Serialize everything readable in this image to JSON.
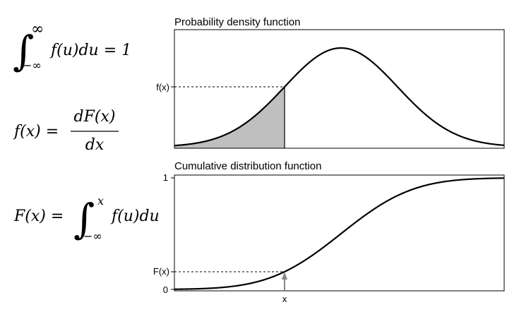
{
  "formulas": {
    "normalization": {
      "upper": "∞",
      "lower": "−∞",
      "integrand": "f(u)du = 1"
    },
    "derivative": {
      "lhs": "f(x) =",
      "numerator": "dF(x)",
      "denominator": "dx"
    },
    "cumulative": {
      "lhs": "F(x) =",
      "upper": "x",
      "lower": "−∞",
      "integrand": "f(u)du"
    }
  },
  "pdf_panel": {
    "title": "Probability density function",
    "y_label": "f(x)"
  },
  "cdf_panel": {
    "title": "Cumulative distribution function",
    "y_max_label": "1",
    "y_min_label": "0",
    "y_label": "F(x)",
    "x_label": "x"
  }
}
